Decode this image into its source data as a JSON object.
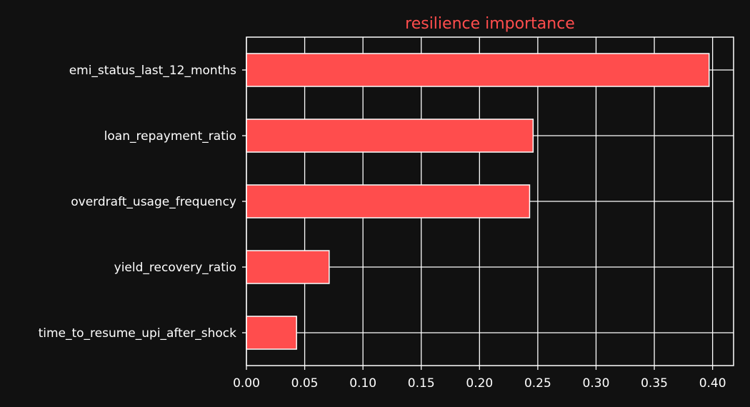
{
  "chart_data": {
    "type": "bar",
    "orientation": "horizontal",
    "title": "resilience importance",
    "xlabel": "",
    "ylabel": "",
    "categories": [
      "emi_status_last_12_months",
      "loan_repayment_ratio",
      "overdraft_usage_frequency",
      "yield_recovery_ratio",
      "time_to_resume_upi_after_shock"
    ],
    "values": [
      0.397,
      0.246,
      0.243,
      0.071,
      0.043
    ],
    "xlim": [
      0.0,
      0.418
    ],
    "xticks": [
      "0.00",
      "0.05",
      "0.10",
      "0.15",
      "0.20",
      "0.25",
      "0.30",
      "0.35",
      "0.40"
    ],
    "grid": true,
    "legend": "none",
    "colors": {
      "background": "#111111",
      "bar": "#ff4d4d",
      "bar_edge": "#ffffff",
      "grid": "#ffffff",
      "axis": "#ffffff",
      "title": "#ff4d4d",
      "text": "#ffffff"
    }
  }
}
